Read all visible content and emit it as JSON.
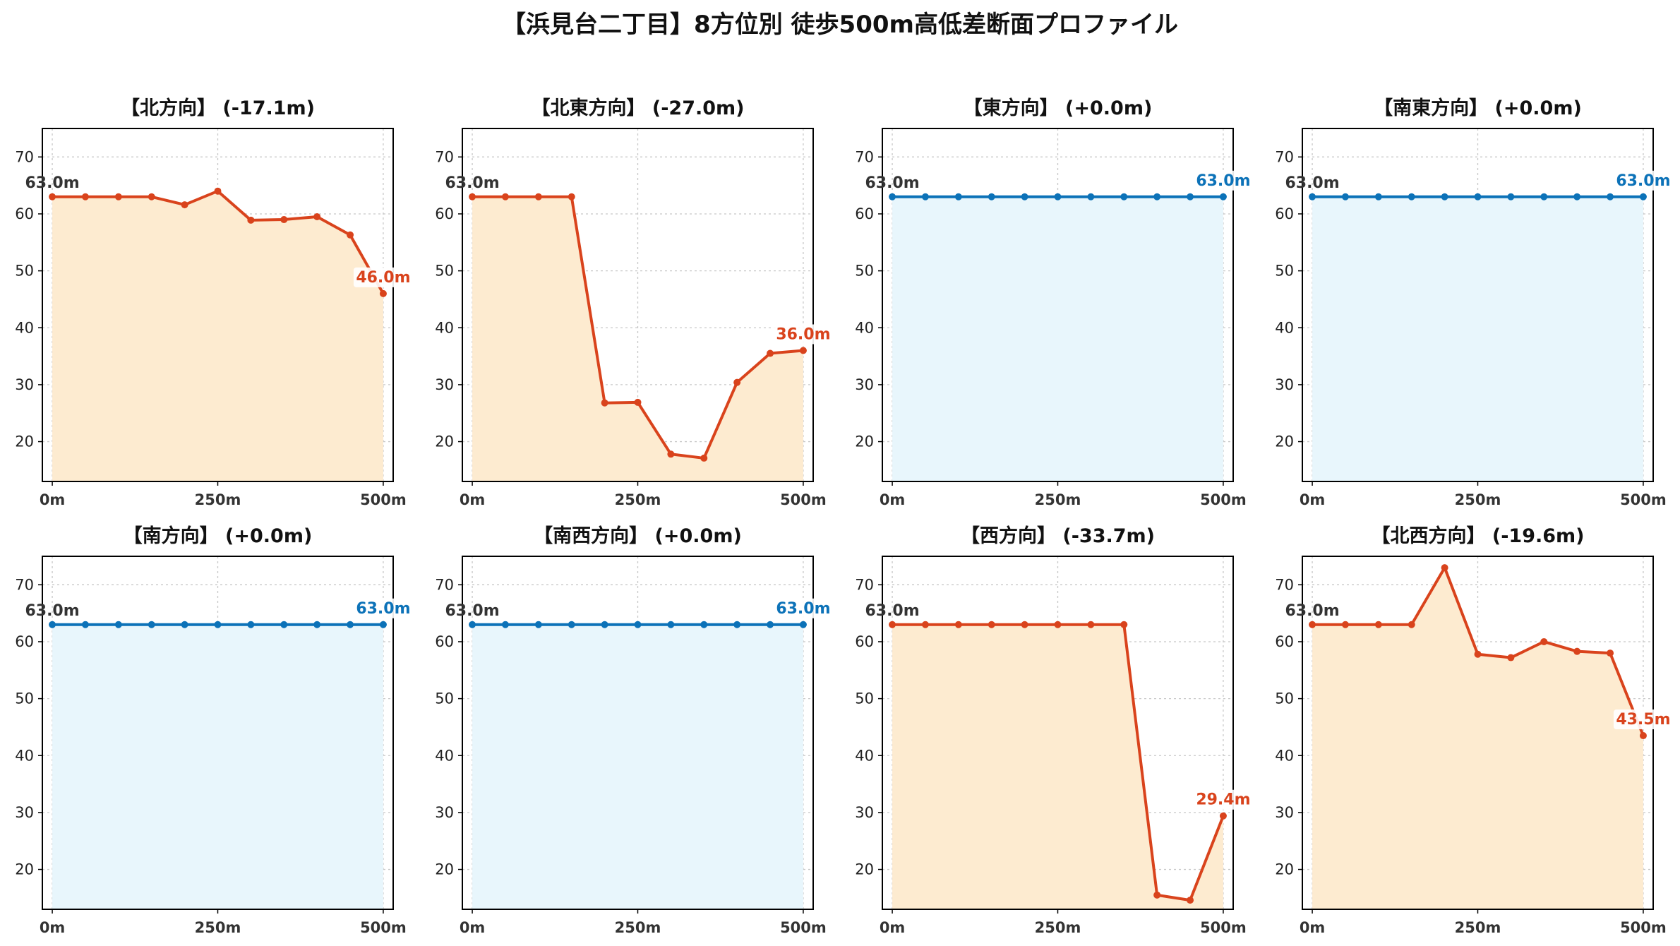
{
  "figure": {
    "title": "【浜見台二丁目】8方位別 徒歩500m高低差断面プロファイル"
  },
  "colors": {
    "decline_line": "#d9431c",
    "decline_fill": "#fdebd0",
    "flat_line": "#0c72b8",
    "flat_fill": "#e8f6fc",
    "start_label": "#333333"
  },
  "chart_data": [
    {
      "type": "area",
      "title": "【北方向】 (-17.1m)",
      "trend": "decline",
      "x": [
        0,
        50,
        100,
        150,
        200,
        250,
        300,
        350,
        400,
        450,
        500
      ],
      "y": [
        63.0,
        63.0,
        63.0,
        63.0,
        61.6,
        64.0,
        58.9,
        59.0,
        59.5,
        56.3,
        46.0
      ],
      "start_label": "63.0m",
      "end_label": "46.0m",
      "xticks": [
        "0m",
        "250m",
        "500m"
      ],
      "xtick_values": [
        0,
        250,
        500
      ],
      "yticks": [
        20,
        30,
        40,
        50,
        60,
        70
      ],
      "xlim": [
        -15,
        515
      ],
      "ylim": [
        13,
        75
      ],
      "grid": true
    },
    {
      "type": "area",
      "title": "【北東方向】 (-27.0m)",
      "trend": "decline",
      "x": [
        0,
        50,
        100,
        150,
        200,
        250,
        300,
        350,
        400,
        450,
        500
      ],
      "y": [
        63.0,
        63.0,
        63.0,
        63.0,
        26.8,
        26.9,
        17.8,
        17.1,
        30.4,
        35.5,
        36.0
      ],
      "start_label": "63.0m",
      "end_label": "36.0m",
      "xticks": [
        "0m",
        "250m",
        "500m"
      ],
      "xtick_values": [
        0,
        250,
        500
      ],
      "yticks": [
        20,
        30,
        40,
        50,
        60,
        70
      ],
      "xlim": [
        -15,
        515
      ],
      "ylim": [
        13,
        75
      ],
      "grid": true
    },
    {
      "type": "area",
      "title": "【東方向】 (+0.0m)",
      "trend": "flat",
      "x": [
        0,
        50,
        100,
        150,
        200,
        250,
        300,
        350,
        400,
        450,
        500
      ],
      "y": [
        63.0,
        63.0,
        63.0,
        63.0,
        63.0,
        63.0,
        63.0,
        63.0,
        63.0,
        63.0,
        63.0
      ],
      "start_label": "63.0m",
      "end_label": "63.0m",
      "xticks": [
        "0m",
        "250m",
        "500m"
      ],
      "xtick_values": [
        0,
        250,
        500
      ],
      "yticks": [
        20,
        30,
        40,
        50,
        60,
        70
      ],
      "xlim": [
        -15,
        515
      ],
      "ylim": [
        13,
        75
      ],
      "grid": true
    },
    {
      "type": "area",
      "title": "【南東方向】 (+0.0m)",
      "trend": "flat",
      "x": [
        0,
        50,
        100,
        150,
        200,
        250,
        300,
        350,
        400,
        450,
        500
      ],
      "y": [
        63.0,
        63.0,
        63.0,
        63.0,
        63.0,
        63.0,
        63.0,
        63.0,
        63.0,
        63.0,
        63.0
      ],
      "start_label": "63.0m",
      "end_label": "63.0m",
      "xticks": [
        "0m",
        "250m",
        "500m"
      ],
      "xtick_values": [
        0,
        250,
        500
      ],
      "yticks": [
        20,
        30,
        40,
        50,
        60,
        70
      ],
      "xlim": [
        -15,
        515
      ],
      "ylim": [
        13,
        75
      ],
      "grid": true
    },
    {
      "type": "area",
      "title": "【南方向】 (+0.0m)",
      "trend": "flat",
      "x": [
        0,
        50,
        100,
        150,
        200,
        250,
        300,
        350,
        400,
        450,
        500
      ],
      "y": [
        63.0,
        63.0,
        63.0,
        63.0,
        63.0,
        63.0,
        63.0,
        63.0,
        63.0,
        63.0,
        63.0
      ],
      "start_label": "63.0m",
      "end_label": "63.0m",
      "xticks": [
        "0m",
        "250m",
        "500m"
      ],
      "xtick_values": [
        0,
        250,
        500
      ],
      "yticks": [
        20,
        30,
        40,
        50,
        60,
        70
      ],
      "xlim": [
        -15,
        515
      ],
      "ylim": [
        13,
        75
      ],
      "grid": true
    },
    {
      "type": "area",
      "title": "【南西方向】 (+0.0m)",
      "trend": "flat",
      "x": [
        0,
        50,
        100,
        150,
        200,
        250,
        300,
        350,
        400,
        450,
        500
      ],
      "y": [
        63.0,
        63.0,
        63.0,
        63.0,
        63.0,
        63.0,
        63.0,
        63.0,
        63.0,
        63.0,
        63.0
      ],
      "start_label": "63.0m",
      "end_label": "63.0m",
      "xticks": [
        "0m",
        "250m",
        "500m"
      ],
      "xtick_values": [
        0,
        250,
        500
      ],
      "yticks": [
        20,
        30,
        40,
        50,
        60,
        70
      ],
      "xlim": [
        -15,
        515
      ],
      "ylim": [
        13,
        75
      ],
      "grid": true
    },
    {
      "type": "area",
      "title": "【西方向】 (-33.7m)",
      "trend": "decline",
      "x": [
        0,
        50,
        100,
        150,
        200,
        250,
        300,
        350,
        400,
        450,
        500
      ],
      "y": [
        63.0,
        63.0,
        63.0,
        63.0,
        63.0,
        63.0,
        63.0,
        63.0,
        15.5,
        14.6,
        29.4
      ],
      "start_label": "63.0m",
      "end_label": "29.4m",
      "xticks": [
        "0m",
        "250m",
        "500m"
      ],
      "xtick_values": [
        0,
        250,
        500
      ],
      "yticks": [
        20,
        30,
        40,
        50,
        60,
        70
      ],
      "xlim": [
        -15,
        515
      ],
      "ylim": [
        13,
        75
      ],
      "grid": true
    },
    {
      "type": "area",
      "title": "【北西方向】 (-19.6m)",
      "trend": "decline",
      "x": [
        0,
        50,
        100,
        150,
        200,
        250,
        300,
        350,
        400,
        450,
        500
      ],
      "y": [
        63.0,
        63.0,
        63.0,
        63.0,
        73.0,
        57.8,
        57.2,
        60.0,
        58.3,
        58.0,
        43.5
      ],
      "start_label": "63.0m",
      "end_label": "43.5m",
      "xticks": [
        "0m",
        "250m",
        "500m"
      ],
      "xtick_values": [
        0,
        250,
        500
      ],
      "yticks": [
        20,
        30,
        40,
        50,
        60,
        70
      ],
      "xlim": [
        -15,
        515
      ],
      "ylim": [
        13,
        75
      ],
      "grid": true
    }
  ]
}
